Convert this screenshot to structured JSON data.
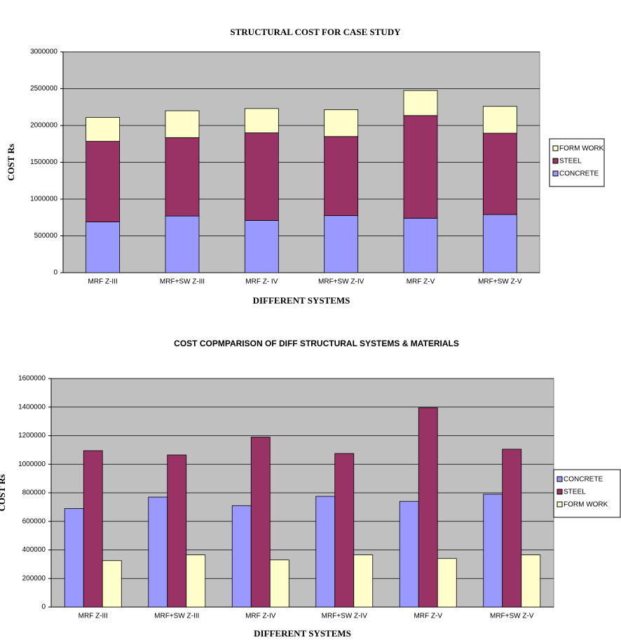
{
  "chart_data": [
    {
      "type": "stacked_bar",
      "title": "STRUCTURAL COST FOR CASE STUDY",
      "xlabel": "DIFFERENT SYSTEMS",
      "ylabel": "COST Rs",
      "categories": [
        "MRF Z-III",
        "MRF+SW Z-III",
        "MRF Z- IV",
        "MRF+SW Z-IV",
        "MRF Z-V",
        "MRF+SW Z-V"
      ],
      "series": [
        {
          "name": "FORM WORK",
          "color": "#ffffcc",
          "values": [
            325000,
            365000,
            330000,
            365000,
            340000,
            365000
          ]
        },
        {
          "name": "STEEL",
          "color": "#993366",
          "values": [
            1095000,
            1065000,
            1190000,
            1075000,
            1395000,
            1105000
          ]
        },
        {
          "name": "CONCRETE",
          "color": "#9999ff",
          "values": [
            690000,
            770000,
            710000,
            775000,
            740000,
            790000
          ]
        }
      ],
      "ylim": [
        0,
        3000000
      ],
      "yticks": [
        0,
        500000,
        1000000,
        1500000,
        2000000,
        2500000,
        3000000
      ],
      "grid": true,
      "legend": "right"
    },
    {
      "type": "bar",
      "title": "COST COPMPARISON OF DIFF STRUCTURAL SYSTEMS & MATERIALS",
      "xlabel": "DIFFERENT SYSTEMS",
      "ylabel": "COST Rs",
      "categories": [
        "MRF Z-III",
        "MRF+SW Z-III",
        "MRF Z-IV",
        "MRF+SW Z-IV",
        "MRF Z-V",
        "MRF+SW Z-V"
      ],
      "series": [
        {
          "name": "CONCRETE",
          "color": "#9999ff",
          "values": [
            690000,
            770000,
            710000,
            775000,
            740000,
            790000
          ]
        },
        {
          "name": "STEEL",
          "color": "#993366",
          "values": [
            1095000,
            1065000,
            1190000,
            1075000,
            1395000,
            1105000
          ]
        },
        {
          "name": "FORM WORK",
          "color": "#ffffcc",
          "values": [
            325000,
            365000,
            330000,
            365000,
            340000,
            365000
          ]
        }
      ],
      "ylim": [
        0,
        1600000
      ],
      "yticks": [
        0,
        200000,
        400000,
        600000,
        800000,
        1000000,
        1200000,
        1400000,
        1600000
      ],
      "grid": true,
      "legend": "right"
    }
  ]
}
